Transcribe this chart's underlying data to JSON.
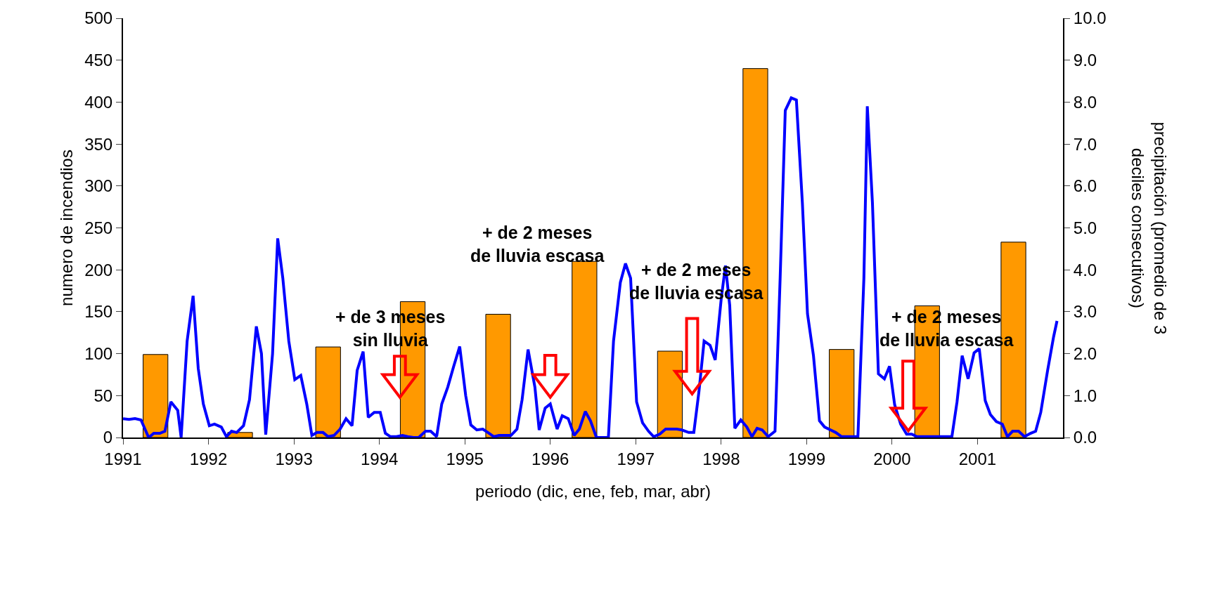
{
  "chart_data": {
    "type": "bar",
    "xlabel": "periodo (dic, ene, feb, mar, abr)",
    "ylabel": "numero de incendios",
    "y2label": "precipitación (promedio de 3\ndeciles consecutivos)",
    "annotations": [
      "+ de 3 meses\nsin lluvia",
      "+ de 2 meses\nde lluvia escasa",
      "+ de 2 meses\nde lluvia escasa",
      "+ de 2 meses\nde lluvia escasa"
    ],
    "xlim": [
      1991,
      2002
    ],
    "xticks": [
      1991,
      1992,
      1993,
      1994,
      1995,
      1996,
      1997,
      1998,
      1999,
      2000,
      2001
    ],
    "ylim": [
      0,
      500
    ],
    "yticks": [
      0,
      50,
      100,
      150,
      200,
      250,
      300,
      350,
      400,
      450,
      500
    ],
    "y2lim": [
      0,
      10
    ],
    "y2ticks": [
      {
        "value": 0,
        "label": "0.0"
      },
      {
        "value": 1,
        "label": "1.0"
      },
      {
        "value": 2,
        "label": "2.0"
      },
      {
        "value": 3,
        "label": "3.0"
      },
      {
        "value": 4,
        "label": "4.0"
      },
      {
        "value": 5,
        "label": "5.0"
      },
      {
        "value": 6,
        "label": "6.0"
      },
      {
        "value": 7,
        "label": "7.0"
      },
      {
        "value": 8,
        "label": "8.0"
      },
      {
        "value": 9,
        "label": "9.0"
      },
      {
        "value": 10,
        "label": "10.0"
      }
    ],
    "legend": false,
    "series": [
      {
        "color": "#ff9900",
        "x": [
          1991.38,
          1992.37,
          1993.4,
          1994.39,
          1995.39,
          1996.4,
          1997.4,
          1998.4,
          1999.41,
          2000.41,
          2001.42
        ],
        "values": [
          99,
          6,
          108,
          162,
          147,
          210,
          103,
          440,
          105,
          157,
          233
        ]
      },
      {
        "type": "line",
        "axis": "y2",
        "color": "#0000ff",
        "x": [
          1991.0,
          1991.07,
          1991.14,
          1991.21,
          1991.3,
          1991.36,
          1991.43,
          1991.49,
          1991.56,
          1991.64,
          1991.68,
          1991.75,
          1991.82,
          1991.88,
          1991.94,
          1992.01,
          1992.07,
          1992.15,
          1992.21,
          1992.27,
          1992.33,
          1992.41,
          1992.48,
          1992.56,
          1992.62,
          1992.67,
          1992.75,
          1992.81,
          1992.87,
          1992.94,
          1993.01,
          1993.08,
          1993.15,
          1993.21,
          1993.27,
          1993.34,
          1993.4,
          1993.47,
          1993.54,
          1993.61,
          1993.68,
          1993.74,
          1993.81,
          1993.87,
          1993.94,
          1994.01,
          1994.07,
          1994.13,
          1994.2,
          1994.27,
          1994.33,
          1994.4,
          1994.46,
          1994.54,
          1994.6,
          1994.67,
          1994.73,
          1994.8,
          1994.87,
          1994.94,
          1995.01,
          1995.07,
          1995.14,
          1995.21,
          1995.27,
          1995.34,
          1995.4,
          1995.48,
          1995.54,
          1995.61,
          1995.67,
          1995.74,
          1995.82,
          1995.87,
          1995.94,
          1996.0,
          1996.08,
          1996.14,
          1996.21,
          1996.28,
          1996.34,
          1996.41,
          1996.47,
          1996.54,
          1996.6,
          1996.68,
          1996.74,
          1996.82,
          1996.88,
          1996.94,
          1997.01,
          1997.08,
          1997.15,
          1997.21,
          1997.28,
          1997.35,
          1997.42,
          1997.48,
          1997.54,
          1997.62,
          1997.68,
          1997.74,
          1997.8,
          1997.87,
          1997.93,
          1998.0,
          1998.05,
          1998.1,
          1998.16,
          1998.23,
          1998.3,
          1998.36,
          1998.42,
          1998.48,
          1998.55,
          1998.63,
          1998.69,
          1998.75,
          1998.82,
          1998.88,
          1998.95,
          1999.01,
          1999.08,
          1999.15,
          1999.21,
          1999.28,
          1999.34,
          1999.41,
          1999.48,
          1999.54,
          1999.6,
          1999.67,
          1999.71,
          1999.77,
          1999.84,
          1999.91,
          1999.97,
          2000.03,
          2000.1,
          2000.17,
          2000.23,
          2000.29,
          2000.36,
          2000.43,
          2000.49,
          2000.56,
          2000.63,
          2000.7,
          2000.76,
          2000.82,
          2000.89,
          2000.96,
          2001.02,
          2001.09,
          2001.15,
          2001.22,
          2001.29,
          2001.35,
          2001.41,
          2001.48,
          2001.55,
          2001.62,
          2001.68,
          2001.74,
          2001.82,
          2001.89,
          2001.93
        ],
        "values": [
          0.45,
          0.43,
          0.45,
          0.42,
          0.0,
          0.1,
          0.1,
          0.15,
          0.85,
          0.65,
          0.0,
          2.3,
          3.38,
          1.65,
          0.8,
          0.28,
          0.32,
          0.25,
          0.02,
          0.15,
          0.12,
          0.28,
          0.9,
          2.65,
          2.0,
          0.07,
          2.0,
          4.75,
          3.8,
          2.3,
          1.38,
          1.48,
          0.8,
          0.05,
          0.12,
          0.12,
          0.02,
          0.05,
          0.2,
          0.45,
          0.28,
          1.6,
          2.05,
          0.48,
          0.6,
          0.6,
          0.1,
          0.02,
          0.02,
          0.05,
          0.02,
          0.0,
          0.0,
          0.15,
          0.15,
          0.02,
          0.8,
          1.2,
          1.7,
          2.17,
          1.0,
          0.3,
          0.18,
          0.2,
          0.12,
          0.02,
          0.05,
          0.05,
          0.05,
          0.2,
          0.9,
          2.1,
          1.2,
          0.18,
          0.7,
          0.8,
          0.2,
          0.52,
          0.45,
          0.05,
          0.2,
          0.62,
          0.4,
          0.0,
          0.0,
          0.0,
          2.3,
          3.7,
          4.15,
          3.8,
          0.85,
          0.35,
          0.15,
          0.02,
          0.08,
          0.2,
          0.2,
          0.2,
          0.18,
          0.12,
          0.12,
          1.1,
          2.3,
          2.2,
          1.85,
          3.3,
          4.1,
          3.15,
          0.22,
          0.42,
          0.25,
          0.02,
          0.22,
          0.18,
          0.02,
          0.15,
          3.8,
          7.8,
          8.1,
          8.05,
          5.6,
          2.95,
          1.95,
          0.4,
          0.25,
          0.18,
          0.12,
          0.02,
          0.02,
          0.02,
          0.02,
          3.8,
          7.9,
          5.6,
          1.52,
          1.4,
          1.7,
          0.78,
          0.32,
          0.08,
          0.08,
          0.02,
          0.02,
          0.02,
          0.02,
          0.02,
          0.02,
          0.02,
          0.85,
          1.95,
          1.4,
          2.02,
          2.12,
          0.88,
          0.55,
          0.38,
          0.32,
          0.02,
          0.15,
          0.15,
          0.02,
          0.1,
          0.15,
          0.6,
          1.6,
          2.4,
          2.78
        ]
      }
    ]
  }
}
